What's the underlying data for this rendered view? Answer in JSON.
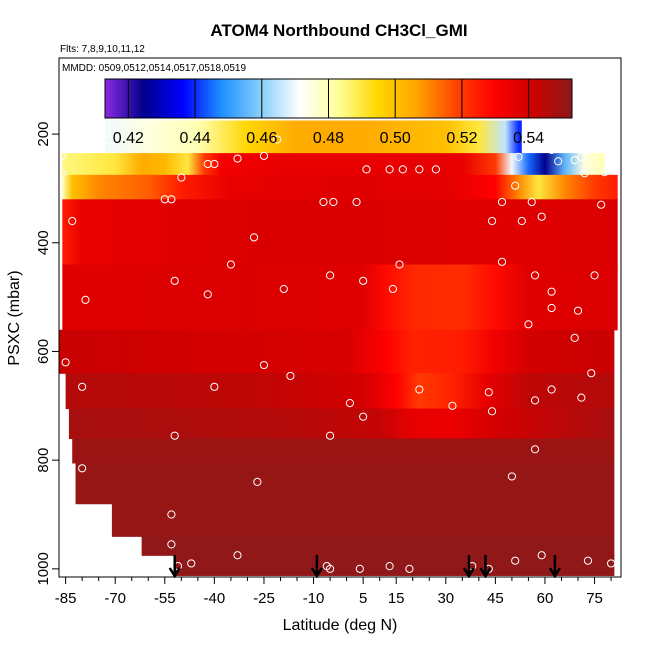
{
  "chart_data": {
    "type": "heatmap",
    "title": "ATOM4 Northbound CH3Cl_GMI",
    "flights_note": "Flts: 7,8,9,10,11,12",
    "dates_note": "MMDD: 0509,0512,0514,0517,0518,0519",
    "xlabel": "Latitude (deg N)",
    "ylabel": "PSXC (mbar)",
    "xlim": [
      -87,
      83
    ],
    "ylim": [
      1015,
      60
    ],
    "x_ticks": [
      -85,
      -70,
      -55,
      -40,
      -25,
      -10,
      5,
      15,
      30,
      45,
      60,
      75
    ],
    "x_tick_labels": [
      "-85",
      "-70",
      "-55",
      "-40",
      "-25",
      "-10",
      "5",
      "15",
      "30",
      "45",
      "60",
      "75"
    ],
    "x_minor_ticks": [
      -80,
      -75,
      -65,
      -60,
      -50,
      -45,
      -35,
      -30,
      -20,
      -15,
      -5,
      0,
      10,
      20,
      25,
      35,
      40,
      50,
      55,
      65,
      70,
      80
    ],
    "y_ticks": [
      200,
      400,
      600,
      800,
      1000
    ],
    "y_tick_labels": [
      "200",
      "400",
      "600",
      "800",
      "1000"
    ],
    "colorbar": {
      "min": 0.413,
      "max": 0.553,
      "ticks": [
        0.42,
        0.44,
        0.46,
        0.48,
        0.5,
        0.52,
        0.54
      ],
      "tick_labels": [
        "0.42",
        "0.44",
        "0.46",
        "0.48",
        "0.50",
        "0.52",
        "0.54"
      ],
      "colors": [
        "#8a2be2",
        "#00008b",
        "#0000ff",
        "#1e90ff",
        "#87cefa",
        "#ffffff",
        "#ffff99",
        "#ffd700",
        "#ffa500",
        "#ff4500",
        "#ff0000",
        "#cd0000",
        "#8b1a1a"
      ]
    },
    "pressure_bands": [
      {
        "p_top": 175,
        "p_bottom": 235,
        "lat_min": -73,
        "lat_max": 53
      },
      {
        "p_top": 235,
        "p_bottom": 275,
        "lat_min": -86,
        "lat_max": 78
      },
      {
        "p_top": 275,
        "p_bottom": 320,
        "lat_min": -86,
        "lat_max": 82
      },
      {
        "p_top": 320,
        "p_bottom": 440,
        "lat_min": -86,
        "lat_max": 82
      },
      {
        "p_top": 440,
        "p_bottom": 560,
        "lat_min": -86,
        "lat_max": 82
      },
      {
        "p_top": 560,
        "p_bottom": 640,
        "lat_min": -87,
        "lat_max": 81
      },
      {
        "p_top": 640,
        "p_bottom": 705,
        "lat_min": -85,
        "lat_max": 81
      },
      {
        "p_top": 705,
        "p_bottom": 760,
        "lat_min": -84,
        "lat_max": 81
      },
      {
        "p_top": 760,
        "p_bottom": 805,
        "lat_min": -83,
        "lat_max": 81
      },
      {
        "p_top": 805,
        "p_bottom": 880,
        "lat_min": -82,
        "lat_max": 81
      },
      {
        "p_top": 880,
        "p_bottom": 940,
        "lat_min": -71,
        "lat_max": 81
      },
      {
        "p_top": 940,
        "p_bottom": 975,
        "lat_min": -62,
        "lat_max": 81
      },
      {
        "p_top": 975,
        "p_bottom": 1012,
        "lat_min": -52,
        "lat_max": 81
      }
    ],
    "value_field": [
      {
        "p_top": 175,
        "p_bottom": 235,
        "stops": [
          [
            -73,
            0.47
          ],
          [
            -60,
            0.475
          ],
          [
            -45,
            0.48
          ],
          [
            -30,
            0.495
          ],
          [
            -15,
            0.505
          ],
          [
            5,
            0.505
          ],
          [
            30,
            0.5
          ],
          [
            40,
            0.49
          ],
          [
            48,
            0.465
          ],
          [
            52,
            0.44
          ]
        ]
      },
      {
        "p_top": 235,
        "p_bottom": 275,
        "stops": [
          [
            -86,
            0.485
          ],
          [
            -70,
            0.49
          ],
          [
            -62,
            0.505
          ],
          [
            -55,
            0.502
          ],
          [
            -48,
            0.49
          ],
          [
            -43,
            0.52
          ],
          [
            -38,
            0.532
          ],
          [
            -20,
            0.535
          ],
          [
            10,
            0.535
          ],
          [
            35,
            0.535
          ],
          [
            45,
            0.52
          ],
          [
            50,
            0.47
          ],
          [
            55,
            0.445
          ],
          [
            60,
            0.425
          ],
          [
            66,
            0.455
          ],
          [
            72,
            0.475
          ],
          [
            78,
            0.48
          ]
        ]
      },
      {
        "p_top": 275,
        "p_bottom": 320,
        "stops": [
          [
            -86,
            0.48
          ],
          [
            -83,
            0.5
          ],
          [
            -75,
            0.51
          ],
          [
            -60,
            0.515
          ],
          [
            -50,
            0.525
          ],
          [
            -35,
            0.535
          ],
          [
            0,
            0.537
          ],
          [
            30,
            0.536
          ],
          [
            45,
            0.53
          ],
          [
            52,
            0.51
          ],
          [
            58,
            0.49
          ],
          [
            66,
            0.51
          ],
          [
            75,
            0.52
          ],
          [
            82,
            0.525
          ]
        ]
      },
      {
        "p_top": 320,
        "p_bottom": 440,
        "stops": [
          [
            -86,
            0.525
          ],
          [
            -80,
            0.535
          ],
          [
            -30,
            0.538
          ],
          [
            10,
            0.538
          ],
          [
            45,
            0.537
          ],
          [
            82,
            0.538
          ]
        ]
      },
      {
        "p_top": 440,
        "p_bottom": 560,
        "stops": [
          [
            -86,
            0.537
          ],
          [
            -30,
            0.538
          ],
          [
            5,
            0.537
          ],
          [
            12,
            0.528
          ],
          [
            20,
            0.523
          ],
          [
            35,
            0.522
          ],
          [
            45,
            0.528
          ],
          [
            55,
            0.537
          ],
          [
            82,
            0.538
          ]
        ]
      },
      {
        "p_top": 560,
        "p_bottom": 640,
        "stops": [
          [
            -87,
            0.542
          ],
          [
            -40,
            0.54
          ],
          [
            0,
            0.539
          ],
          [
            12,
            0.53
          ],
          [
            20,
            0.524
          ],
          [
            35,
            0.525
          ],
          [
            45,
            0.533
          ],
          [
            55,
            0.54
          ],
          [
            81,
            0.542
          ]
        ]
      },
      {
        "p_top": 640,
        "p_bottom": 705,
        "stops": [
          [
            -85,
            0.546
          ],
          [
            -30,
            0.544
          ],
          [
            5,
            0.54
          ],
          [
            15,
            0.53
          ],
          [
            22,
            0.52
          ],
          [
            32,
            0.524
          ],
          [
            42,
            0.535
          ],
          [
            55,
            0.544
          ],
          [
            81,
            0.546
          ]
        ]
      },
      {
        "p_top": 705,
        "p_bottom": 760,
        "stops": [
          [
            -84,
            0.548
          ],
          [
            -20,
            0.546
          ],
          [
            10,
            0.543
          ],
          [
            20,
            0.535
          ],
          [
            32,
            0.534
          ],
          [
            45,
            0.54
          ],
          [
            81,
            0.548
          ]
        ]
      },
      {
        "p_top": 760,
        "p_bottom": 805,
        "stops": [
          [
            -83,
            0.55
          ],
          [
            81,
            0.55
          ]
        ]
      },
      {
        "p_top": 805,
        "p_bottom": 880,
        "stops": [
          [
            -82,
            0.551
          ],
          [
            81,
            0.551
          ]
        ]
      },
      {
        "p_top": 880,
        "p_bottom": 940,
        "stops": [
          [
            -71,
            0.551
          ],
          [
            81,
            0.551
          ]
        ]
      },
      {
        "p_top": 940,
        "p_bottom": 975,
        "stops": [
          [
            -62,
            0.552
          ],
          [
            81,
            0.552
          ]
        ]
      },
      {
        "p_top": 975,
        "p_bottom": 1012,
        "stops": [
          [
            -52,
            0.552
          ],
          [
            81,
            0.552
          ]
        ]
      }
    ],
    "observations": [
      [
        -72,
        210
      ],
      [
        -86,
        240
      ],
      [
        -21,
        210
      ],
      [
        -86,
        272
      ],
      [
        -50,
        280
      ],
      [
        -55,
        320
      ],
      [
        -53,
        320
      ],
      [
        -83,
        360
      ],
      [
        -42,
        255
      ],
      [
        -40,
        255
      ],
      [
        -33,
        245
      ],
      [
        -25,
        240
      ],
      [
        -7,
        325
      ],
      [
        -4,
        325
      ],
      [
        3,
        325
      ],
      [
        6,
        265
      ],
      [
        13,
        265
      ],
      [
        17,
        265
      ],
      [
        22,
        265
      ],
      [
        27,
        265
      ],
      [
        47,
        325
      ],
      [
        51,
        295
      ],
      [
        56,
        325
      ],
      [
        64,
        250
      ],
      [
        69,
        248
      ],
      [
        72,
        272
      ],
      [
        78,
        270
      ],
      [
        84,
        275
      ],
      [
        62,
        229
      ],
      [
        71,
        242
      ],
      [
        52,
        242
      ],
      [
        53,
        360
      ],
      [
        59,
        352
      ],
      [
        77,
        330
      ],
      [
        44,
        360
      ],
      [
        -52,
        470
      ],
      [
        -42,
        495
      ],
      [
        -35,
        440
      ],
      [
        -28,
        390
      ],
      [
        -19,
        485
      ],
      [
        -5,
        460
      ],
      [
        5,
        470
      ],
      [
        14,
        485
      ],
      [
        16,
        440
      ],
      [
        47,
        435
      ],
      [
        57,
        460
      ],
      [
        62,
        490
      ],
      [
        62,
        520
      ],
      [
        55,
        550
      ],
      [
        70,
        525
      ],
      [
        75,
        460
      ],
      [
        -79,
        505
      ],
      [
        -85,
        620
      ],
      [
        -80,
        665
      ],
      [
        -40,
        665
      ],
      [
        -25,
        625
      ],
      [
        -17,
        645
      ],
      [
        -5,
        755
      ],
      [
        1,
        695
      ],
      [
        5,
        720
      ],
      [
        22,
        670
      ],
      [
        32,
        700
      ],
      [
        43,
        675
      ],
      [
        44,
        710
      ],
      [
        57,
        690
      ],
      [
        62,
        670
      ],
      [
        71,
        685
      ],
      [
        74,
        640
      ],
      [
        69,
        575
      ],
      [
        -52,
        755
      ],
      [
        -80,
        815
      ],
      [
        -27,
        840
      ],
      [
        50,
        830
      ],
      [
        57,
        780
      ],
      [
        -53,
        900
      ],
      [
        -53,
        955
      ],
      [
        -51,
        995
      ],
      [
        -47,
        990
      ],
      [
        -33,
        975
      ],
      [
        -6,
        995
      ],
      [
        -5,
        1000
      ],
      [
        4,
        1000
      ],
      [
        13,
        995
      ],
      [
        19,
        1000
      ],
      [
        38,
        995
      ],
      [
        43,
        1000
      ],
      [
        51,
        985
      ],
      [
        59,
        975
      ],
      [
        73,
        985
      ],
      [
        80,
        990
      ],
      [
        83,
        995
      ]
    ],
    "flight_markers_lat": [
      -52,
      -9,
      37,
      42,
      63
    ]
  }
}
